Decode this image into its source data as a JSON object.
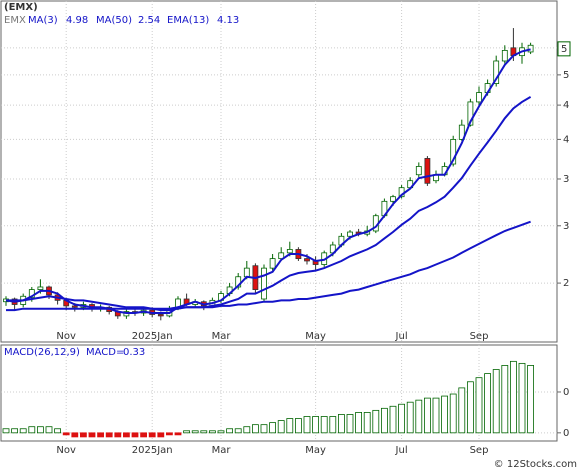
{
  "chart_data": [
    {
      "type": "candlestick",
      "title": "(EMX)",
      "symbol": "EMX",
      "log_scale": true,
      "grid": true,
      "categories": [
        null,
        null,
        null,
        null,
        null,
        null,
        null,
        "Nov",
        null,
        null,
        null,
        null,
        null,
        null,
        null,
        null,
        null,
        "2025Jan",
        null,
        null,
        null,
        null,
        null,
        null,
        null,
        "Mar",
        null,
        null,
        null,
        null,
        null,
        null,
        null,
        null,
        null,
        null,
        "May",
        null,
        null,
        null,
        null,
        null,
        null,
        null,
        null,
        null,
        "Jul",
        null,
        null,
        null,
        null,
        null,
        null,
        null,
        null,
        "Sep",
        null,
        null,
        null,
        null,
        null,
        null
      ],
      "ohlc": {
        "open": [
          1.86,
          1.88,
          1.84,
          1.89,
          1.95,
          1.97,
          1.91,
          1.87,
          1.83,
          1.82,
          1.84,
          1.81,
          1.82,
          1.79,
          1.76,
          1.79,
          1.78,
          1.8,
          1.77,
          1.76,
          1.81,
          1.88,
          1.84,
          1.86,
          1.83,
          1.87,
          1.92,
          1.97,
          2.05,
          2.14,
          1.88,
          2.12,
          2.2,
          2.25,
          2.28,
          2.2,
          2.18,
          2.15,
          2.25,
          2.32,
          2.4,
          2.44,
          2.42,
          2.45,
          2.6,
          2.75,
          2.8,
          2.9,
          3.05,
          3.25,
          2.98,
          3.05,
          3.18,
          3.5,
          3.7,
          4.05,
          4.2,
          4.35,
          4.75,
          5.0,
          4.85,
          4.92
        ],
        "high": [
          1.9,
          1.89,
          1.92,
          1.97,
          2.03,
          1.98,
          1.93,
          1.89,
          1.85,
          1.86,
          1.85,
          1.84,
          1.83,
          1.8,
          1.81,
          1.81,
          1.82,
          1.82,
          1.79,
          1.83,
          1.9,
          1.92,
          1.88,
          1.87,
          1.89,
          1.94,
          2.0,
          2.08,
          2.18,
          2.16,
          2.15,
          2.24,
          2.3,
          2.35,
          2.3,
          2.24,
          2.22,
          2.27,
          2.35,
          2.43,
          2.46,
          2.47,
          2.5,
          2.62,
          2.78,
          2.82,
          2.93,
          3.02,
          3.2,
          3.28,
          3.1,
          3.2,
          3.55,
          3.78,
          4.1,
          4.3,
          4.42,
          4.85,
          5.05,
          5.4,
          5.1,
          5.1
        ],
        "low": [
          1.83,
          1.8,
          1.82,
          1.86,
          1.92,
          1.88,
          1.84,
          1.8,
          1.79,
          1.8,
          1.79,
          1.79,
          1.77,
          1.74,
          1.74,
          1.76,
          1.76,
          1.75,
          1.73,
          1.75,
          1.8,
          1.83,
          1.82,
          1.8,
          1.82,
          1.85,
          1.9,
          1.95,
          2.03,
          1.92,
          1.86,
          2.1,
          2.18,
          2.22,
          2.18,
          2.15,
          2.1,
          2.13,
          2.22,
          2.3,
          2.37,
          2.4,
          2.4,
          2.43,
          2.58,
          2.7,
          2.78,
          2.88,
          3.02,
          2.92,
          2.95,
          3.03,
          3.15,
          3.48,
          3.68,
          4.0,
          4.15,
          4.3,
          4.7,
          4.75,
          4.7,
          4.88
        ],
        "close": [
          1.88,
          1.84,
          1.9,
          1.95,
          1.97,
          1.91,
          1.87,
          1.83,
          1.82,
          1.84,
          1.81,
          1.82,
          1.79,
          1.76,
          1.79,
          1.78,
          1.8,
          1.77,
          1.76,
          1.81,
          1.88,
          1.84,
          1.86,
          1.83,
          1.87,
          1.92,
          1.97,
          2.05,
          2.12,
          1.95,
          2.12,
          2.2,
          2.25,
          2.28,
          2.2,
          2.18,
          2.15,
          2.25,
          2.32,
          2.4,
          2.44,
          2.42,
          2.45,
          2.6,
          2.75,
          2.8,
          2.9,
          2.98,
          3.15,
          2.95,
          3.05,
          3.15,
          3.5,
          3.7,
          4.05,
          4.2,
          4.35,
          4.75,
          4.95,
          4.85,
          5.0,
          5.05
        ]
      },
      "up_color": "#006400",
      "down_color": "#dd1111",
      "series": [
        {
          "name": "MA(3)",
          "legend_value": 4.98,
          "color": "#1414c8",
          "values": [
            1.87,
            1.86,
            1.87,
            1.9,
            1.94,
            1.94,
            1.92,
            1.87,
            1.84,
            1.83,
            1.82,
            1.82,
            1.81,
            1.79,
            1.78,
            1.78,
            1.79,
            1.78,
            1.78,
            1.78,
            1.82,
            1.84,
            1.86,
            1.84,
            1.85,
            1.87,
            1.92,
            1.98,
            2.05,
            2.04,
            2.06,
            2.09,
            2.19,
            2.24,
            2.24,
            2.22,
            2.18,
            2.19,
            2.24,
            2.32,
            2.39,
            2.42,
            2.44,
            2.49,
            2.6,
            2.72,
            2.82,
            2.89,
            3.01,
            3.03,
            3.05,
            3.05,
            3.23,
            3.45,
            3.75,
            3.98,
            4.2,
            4.43,
            4.68,
            4.85,
            4.93,
            4.97
          ]
        },
        {
          "name": "MA(50)",
          "legend_value": 2.54,
          "color": "#1414c8",
          "values": [
            1.8,
            1.8,
            1.81,
            1.81,
            1.81,
            1.81,
            1.81,
            1.81,
            1.81,
            1.81,
            1.81,
            1.81,
            1.81,
            1.81,
            1.81,
            1.81,
            1.81,
            1.81,
            1.81,
            1.81,
            1.82,
            1.82,
            1.82,
            1.82,
            1.82,
            1.83,
            1.83,
            1.84,
            1.84,
            1.85,
            1.86,
            1.86,
            1.87,
            1.87,
            1.88,
            1.88,
            1.89,
            1.9,
            1.91,
            1.92,
            1.94,
            1.95,
            1.97,
            1.99,
            2.01,
            2.03,
            2.05,
            2.07,
            2.1,
            2.12,
            2.15,
            2.18,
            2.21,
            2.25,
            2.29,
            2.33,
            2.37,
            2.41,
            2.45,
            2.48,
            2.51,
            2.54
          ]
        },
        {
          "name": "EMA(13)",
          "legend_value": 4.13,
          "color": "#1414c8",
          "values": [
            1.87,
            1.87,
            1.87,
            1.88,
            1.89,
            1.9,
            1.89,
            1.88,
            1.87,
            1.87,
            1.86,
            1.85,
            1.84,
            1.83,
            1.82,
            1.82,
            1.82,
            1.81,
            1.8,
            1.8,
            1.81,
            1.82,
            1.82,
            1.82,
            1.83,
            1.84,
            1.86,
            1.88,
            1.92,
            1.92,
            1.95,
            1.98,
            2.02,
            2.06,
            2.08,
            2.09,
            2.1,
            2.12,
            2.15,
            2.18,
            2.22,
            2.25,
            2.28,
            2.32,
            2.38,
            2.44,
            2.51,
            2.57,
            2.65,
            2.69,
            2.74,
            2.8,
            2.9,
            3.01,
            3.16,
            3.31,
            3.46,
            3.62,
            3.8,
            3.95,
            4.05,
            4.13
          ]
        }
      ],
      "last_price": {
        "value": 4.98,
        "label": "5"
      },
      "ylim": [
        1.59,
        6.0
      ],
      "yticks": [
        5,
        {
          "value": 4.5,
          "label": "5"
        },
        4,
        {
          "value": 3.5,
          "label": "4"
        },
        3,
        {
          "value": 2.5,
          "label": "3"
        },
        2
      ]
    },
    {
      "type": "bar",
      "title": "MACD(26,12,9)",
      "name": "MACD=",
      "legend_value": 0.33,
      "grid": true,
      "categories": [
        null,
        null,
        null,
        null,
        null,
        null,
        null,
        "Nov",
        null,
        null,
        null,
        null,
        null,
        null,
        null,
        null,
        null,
        "2025Jan",
        null,
        null,
        null,
        null,
        null,
        null,
        null,
        "Mar",
        null,
        null,
        null,
        null,
        null,
        null,
        null,
        null,
        null,
        null,
        "May",
        null,
        null,
        null,
        null,
        null,
        null,
        null,
        null,
        null,
        "Jul",
        null,
        null,
        null,
        null,
        null,
        null,
        null,
        null,
        "Sep",
        null,
        null,
        null,
        null,
        null,
        null
      ],
      "up_color": "#006400",
      "down_color": "#dd1111",
      "values": [
        0.02,
        0.02,
        0.02,
        0.03,
        0.03,
        0.03,
        0.02,
        -0.01,
        -0.02,
        -0.02,
        -0.02,
        -0.02,
        -0.02,
        -0.02,
        -0.02,
        -0.02,
        -0.02,
        -0.02,
        -0.02,
        -0.01,
        -0.01,
        0.01,
        0.01,
        0.01,
        0.01,
        0.01,
        0.02,
        0.02,
        0.03,
        0.04,
        0.04,
        0.05,
        0.06,
        0.07,
        0.07,
        0.08,
        0.08,
        0.08,
        0.08,
        0.09,
        0.09,
        0.1,
        0.1,
        0.11,
        0.12,
        0.13,
        0.14,
        0.15,
        0.16,
        0.17,
        0.17,
        0.18,
        0.19,
        0.22,
        0.25,
        0.27,
        0.29,
        0.31,
        0.33,
        0.35,
        0.34,
        0.33
      ],
      "ylim": [
        -0.04,
        0.43
      ],
      "yticks": [
        {
          "value": 0.2,
          "label": "0"
        },
        0
      ]
    }
  ],
  "watermark": "© 12Stocks.com"
}
